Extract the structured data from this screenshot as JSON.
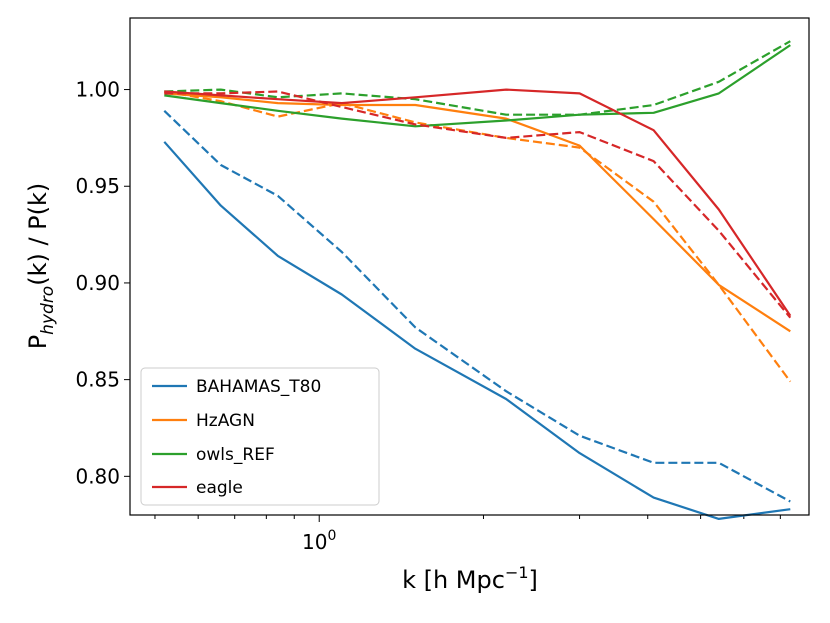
{
  "chart_data": {
    "type": "line",
    "title": "",
    "xlabel": {
      "prefix": "k [h Mpc",
      "sup": "−1",
      "suffix": "]"
    },
    "ylabel": {
      "prefix": "P",
      "sub": "hydro",
      "suffix": "(k) / P(k)"
    },
    "xscale": "log",
    "xlim": [
      0.45,
      7.9
    ],
    "ylim": [
      0.78,
      1.037
    ],
    "yticks": [
      0.8,
      0.85,
      0.9,
      0.95,
      1.0
    ],
    "ytick_labels": [
      "0.80",
      "0.85",
      "0.90",
      "0.95",
      "1.00"
    ],
    "xtick_major": {
      "base": "10",
      "exp": "0"
    },
    "x": [
      0.52,
      0.66,
      0.84,
      1.1,
      1.5,
      2.2,
      3.0,
      4.1,
      5.4,
      7.3
    ],
    "legend_location": "lower-left",
    "series": [
      {
        "name": "BAHAMAS_T80",
        "color": "#1f77b4",
        "solid": [
          0.973,
          0.94,
          0.914,
          0.894,
          0.866,
          0.84,
          0.812,
          0.789,
          0.778,
          0.783
        ],
        "dashed": [
          0.989,
          0.961,
          0.945,
          0.916,
          0.877,
          0.844,
          0.821,
          0.807,
          0.807,
          0.787
        ]
      },
      {
        "name": "HzAGN",
        "color": "#ff7f0e",
        "solid": [
          0.998,
          0.996,
          0.993,
          0.992,
          0.992,
          0.985,
          0.971,
          0.933,
          0.899,
          0.875
        ],
        "dashed": [
          0.999,
          0.994,
          0.986,
          0.993,
          0.983,
          0.975,
          0.97,
          0.942,
          0.899,
          0.849
        ]
      },
      {
        "name": "owls_REF",
        "color": "#2ca02c",
        "solid": [
          0.997,
          0.993,
          0.989,
          0.985,
          0.981,
          0.984,
          0.987,
          0.988,
          0.998,
          1.023
        ],
        "dashed": [
          0.999,
          1.0,
          0.996,
          0.998,
          0.995,
          0.987,
          0.987,
          0.992,
          1.004,
          1.025
        ]
      },
      {
        "name": "eagle",
        "color": "#d62728",
        "solid": [
          0.999,
          0.997,
          0.995,
          0.993,
          0.996,
          1.0,
          0.998,
          0.979,
          0.938,
          0.883
        ],
        "dashed": [
          0.998,
          0.998,
          0.999,
          0.991,
          0.982,
          0.975,
          0.978,
          0.963,
          0.927,
          0.882
        ]
      }
    ]
  }
}
